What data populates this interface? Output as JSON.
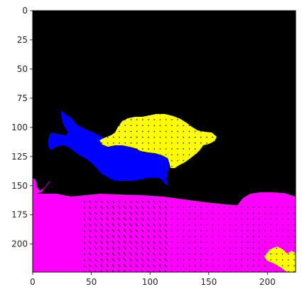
{
  "image_axes": {
    "x_ticks": [
      {
        "value": 0,
        "label": "0"
      },
      {
        "value": 50,
        "label": "50"
      },
      {
        "value": 100,
        "label": "100"
      },
      {
        "value": 150,
        "label": "150"
      },
      {
        "value": 200,
        "label": "200"
      }
    ],
    "y_ticks": [
      {
        "value": 0,
        "label": "0"
      },
      {
        "value": 25,
        "label": "25"
      },
      {
        "value": 50,
        "label": "50"
      },
      {
        "value": 75,
        "label": "75"
      },
      {
        "value": 100,
        "label": "100"
      },
      {
        "value": 125,
        "label": "125"
      },
      {
        "value": 150,
        "label": "150"
      },
      {
        "value": 175,
        "label": "175"
      },
      {
        "value": 200,
        "label": "200"
      }
    ],
    "x_range": [
      0,
      224
    ],
    "y_range": [
      0,
      224
    ],
    "y_inverted": true
  },
  "segmentation": {
    "background_color": "#000000",
    "regions": [
      {
        "name": "blue-region",
        "color": "#0000ff"
      },
      {
        "name": "yellow-region",
        "color": "#ffff00"
      },
      {
        "name": "magenta-region",
        "color": "#ff00ff"
      },
      {
        "name": "yellow-corner-region",
        "color": "#ffff00"
      }
    ]
  }
}
